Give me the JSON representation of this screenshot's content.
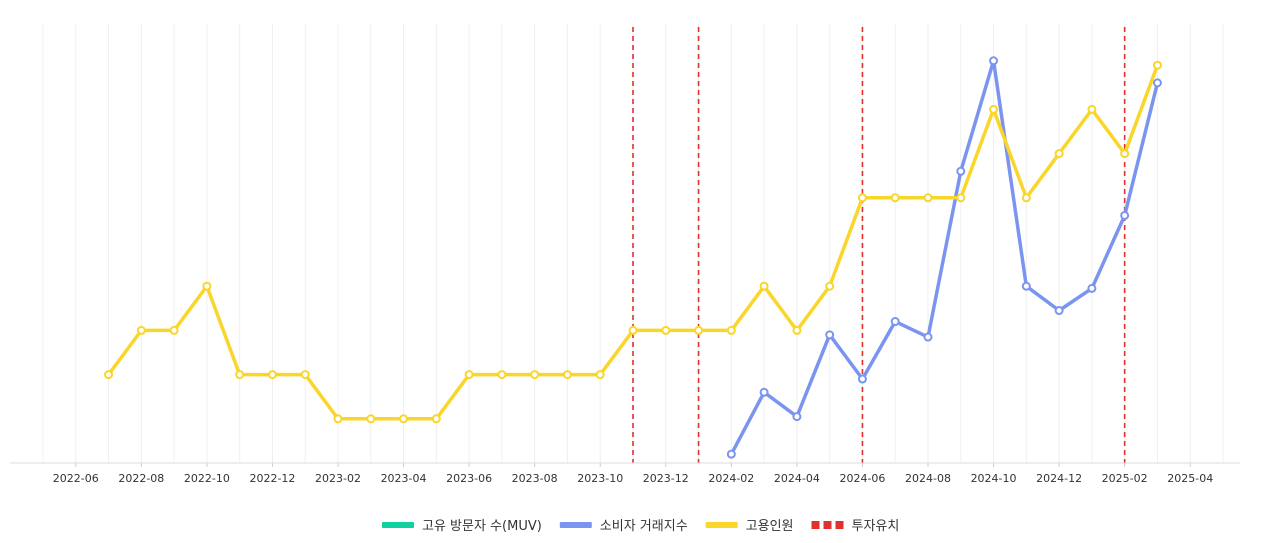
{
  "chart_data": {
    "type": "line",
    "grid": "vertical",
    "legend_position": "bottom-center",
    "x_ticks": [
      "2022-06",
      "2022-08",
      "2022-10",
      "2022-12",
      "2023-02",
      "2023-04",
      "2023-06",
      "2023-08",
      "2023-10",
      "2023-12",
      "2024-02",
      "2024-04",
      "2024-06",
      "2024-08",
      "2024-10",
      "2024-12",
      "2025-02",
      "2025-04"
    ],
    "xlim": [
      "2022-05",
      "2025-05"
    ],
    "ylim": [
      0,
      100
    ],
    "series": [
      {
        "name": "고유 방문자 수(MUV)",
        "color": "#10d0a0",
        "values": []
      },
      {
        "name": "소비자 거래지수",
        "color": "#7b94f0",
        "x": [
          "2024-02",
          "2024-03",
          "2024-04",
          "2024-05",
          "2024-06",
          "2024-07",
          "2024-08",
          "2024-09",
          "2024-10",
          "2024-11",
          "2024-12",
          "2025-01",
          "2025-02",
          "2025-03"
        ],
        "values": [
          2,
          16,
          10.5,
          29,
          19,
          32,
          28.5,
          66,
          91,
          40,
          34.5,
          39.5,
          56,
          86
        ]
      },
      {
        "name": "고용인원",
        "color": "#fad52a",
        "x": [
          "2022-07",
          "2022-08",
          "2022-09",
          "2022-10",
          "2022-11",
          "2022-12",
          "2023-01",
          "2023-02",
          "2023-03",
          "2023-04",
          "2023-05",
          "2023-06",
          "2023-07",
          "2023-08",
          "2023-09",
          "2023-10",
          "2023-11",
          "2023-12",
          "2024-01",
          "2024-02",
          "2024-03",
          "2024-04",
          "2024-05",
          "2024-06",
          "2024-07",
          "2024-08",
          "2024-09",
          "2024-10",
          "2024-11",
          "2024-12",
          "2025-01",
          "2025-02",
          "2025-03"
        ],
        "values": [
          20,
          30,
          30,
          40,
          20,
          20,
          20,
          10,
          10,
          10,
          10,
          20,
          20,
          20,
          20,
          20,
          30,
          30,
          30,
          30,
          40,
          30,
          40,
          60,
          60,
          60,
          60,
          80,
          60,
          70,
          80,
          70,
          90
        ]
      }
    ],
    "investment_events": {
      "name": "투자유치",
      "color": "#e03030",
      "dates": [
        "2023-11",
        "2024-01",
        "2024-06",
        "2025-02"
      ]
    }
  }
}
